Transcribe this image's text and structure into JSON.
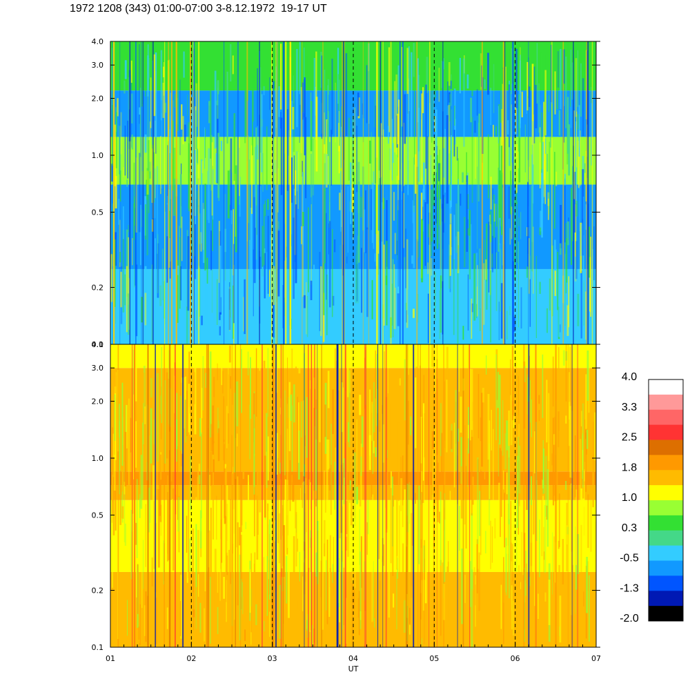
{
  "title": "1972 1208 (343) 01:00-07:00 3-8.12.1972  19-17 UT",
  "palette": {
    "black": "#000000",
    "navy": "#0019b4",
    "blue": "#0055ff",
    "midblue": "#1199ff",
    "cyan": "#33ccff",
    "teal": "#44d888",
    "green": "#33e033",
    "lime": "#99ff33",
    "yellow": "#ffff00",
    "gold": "#ffbb00",
    "orange": "#ff9900",
    "brown": "#dd6f00",
    "red": "#ff3333",
    "salmon": "#ff6666",
    "pink": "#ff9999",
    "white": "#ffffff"
  },
  "chart_data": [
    {
      "type": "heatmap",
      "panel": "upper",
      "title": "",
      "xlabel": "",
      "ylabel": "",
      "y_scale": "log",
      "ylim": [
        0.1,
        4.0
      ],
      "y_ticks": [
        "0.1",
        "0.2",
        "0.5",
        "1.0",
        "2.0",
        "3.0",
        "4.0"
      ],
      "xlim": [
        1,
        7
      ],
      "vertical_dashed_lines_at_x": [
        2,
        3,
        4,
        5,
        6
      ],
      "dominant_colors": [
        "teal",
        "green",
        "cyan",
        "blue",
        "yellow"
      ],
      "bands": [
        {
          "y_from": 0.1,
          "y_to": 0.25,
          "color": "cyan"
        },
        {
          "y_from": 0.25,
          "y_to": 0.7,
          "color": "midblue"
        },
        {
          "y_from": 0.7,
          "y_to": 1.25,
          "color": "lime"
        },
        {
          "y_from": 1.25,
          "y_to": 2.2,
          "color": "midblue"
        },
        {
          "y_from": 2.2,
          "y_to": 4.0,
          "color": "green"
        }
      ]
    },
    {
      "type": "heatmap",
      "panel": "lower",
      "title": "",
      "xlabel": "UT",
      "ylabel": "",
      "y_scale": "log",
      "ylim": [
        0.1,
        4.0
      ],
      "y_ticks": [
        "0.1",
        "0.2",
        "0.5",
        "1.0",
        "2.0",
        "3.0",
        "4.0"
      ],
      "xlim": [
        1,
        7
      ],
      "x_ticks": [
        "01",
        "02",
        "03",
        "04",
        "05",
        "06",
        "07"
      ],
      "vertical_dashed_lines_at_x": [
        2,
        3,
        4,
        5,
        6
      ],
      "dominant_colors": [
        "yellow",
        "gold",
        "orange",
        "lime"
      ],
      "bands": [
        {
          "y_from": 0.1,
          "y_to": 0.25,
          "color": "gold"
        },
        {
          "y_from": 0.25,
          "y_to": 0.6,
          "color": "yellow"
        },
        {
          "y_from": 0.6,
          "y_to": 0.72,
          "color": "gold"
        },
        {
          "y_from": 0.72,
          "y_to": 0.85,
          "color": "orange"
        },
        {
          "y_from": 0.85,
          "y_to": 3.0,
          "color": "gold"
        },
        {
          "y_from": 3.0,
          "y_to": 4.0,
          "color": "yellow"
        }
      ]
    }
  ],
  "colorbar": {
    "labels": [
      "4.0",
      "3.3",
      "2.5",
      "1.8",
      "1.0",
      "0.3",
      "-0.5",
      "-1.3",
      "-2.0"
    ],
    "swatches_top_to_bottom": [
      "white",
      "pink",
      "salmon",
      "red",
      "brown",
      "orange",
      "gold",
      "yellow",
      "lime",
      "green",
      "teal",
      "cyan",
      "midblue",
      "blue",
      "navy",
      "black"
    ]
  }
}
